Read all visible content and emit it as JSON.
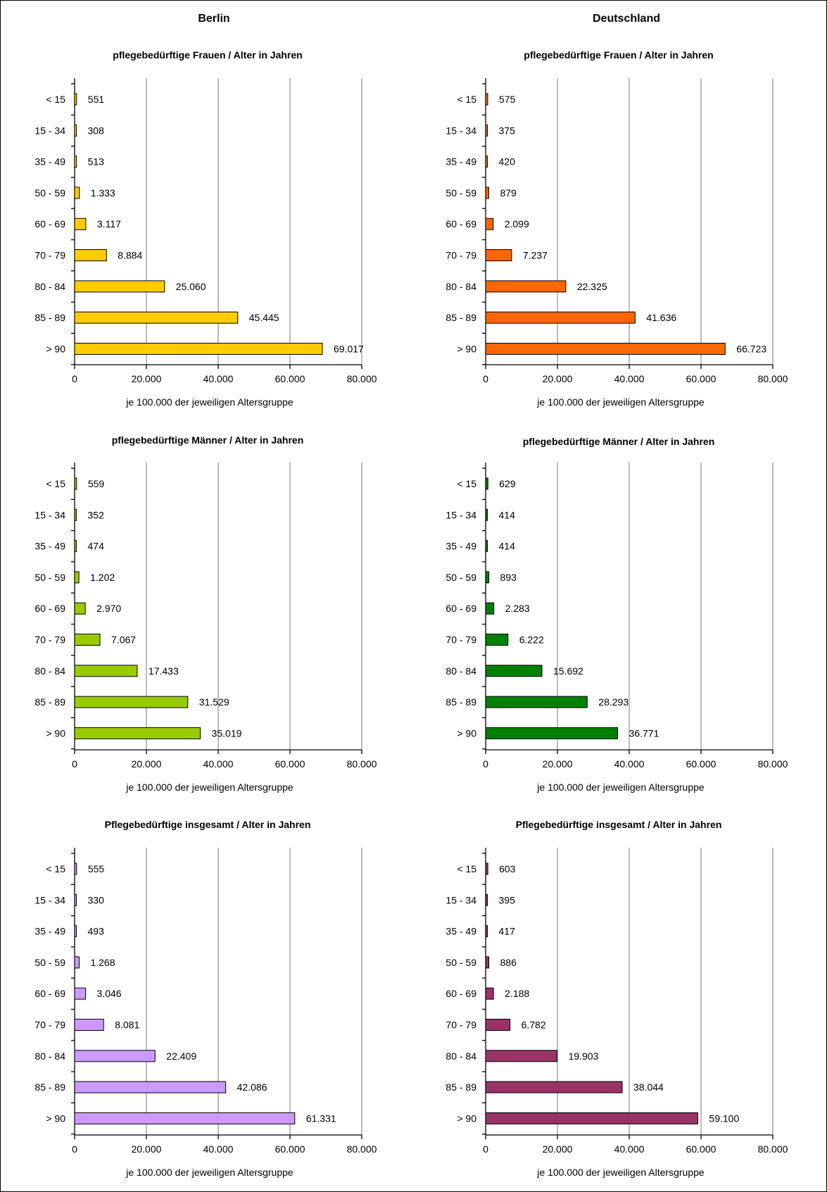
{
  "columns": [
    {
      "title": "Berlin"
    },
    {
      "title": "Deutschland"
    }
  ],
  "chart_data": [
    {
      "type": "bar",
      "orientation": "horizontal",
      "group": "Berlin",
      "title": "pflegebedürftige Frauen / Alter in Jahren",
      "xlabel": "je 100.000 der jeweiligen Altersgruppe",
      "ylabel": "",
      "categories": [
        "<  15",
        "15 - 34",
        "35 - 49",
        "50 - 59",
        "60 - 69",
        "70 - 79",
        "80 - 84",
        "85 - 89",
        "> 90"
      ],
      "values": [
        551,
        308,
        513,
        1333,
        3117,
        8884,
        25060,
        45445,
        69017
      ],
      "labels": [
        "551",
        "308",
        "513",
        "1.333",
        "3.117",
        "8.884",
        "25.060",
        "45.445",
        "69.017"
      ],
      "xticks": [
        "0",
        "20.000",
        "40.000",
        "60.000",
        "80.000"
      ],
      "xlim": [
        0,
        80000
      ],
      "grid": true,
      "color": "#FFCC00"
    },
    {
      "type": "bar",
      "orientation": "horizontal",
      "group": "Deutschland",
      "title": "pflegebedürftige Frauen / Alter in Jahren",
      "xlabel": "je 100.000 der jeweiligen Altersgruppe",
      "ylabel": "",
      "categories": [
        "<  15",
        "15 - 34",
        "35 - 49",
        "50 - 59",
        "60 - 69",
        "70 - 79",
        "80 - 84",
        "85 - 89",
        "> 90"
      ],
      "values": [
        575,
        375,
        420,
        879,
        2099,
        7237,
        22325,
        41636,
        66723
      ],
      "labels": [
        "575",
        "375",
        "420",
        "879",
        "2.099",
        "7.237",
        "22.325",
        "41.636",
        "66.723"
      ],
      "xticks": [
        "0",
        "20.000",
        "40.000",
        "60.000",
        "80.000"
      ],
      "xlim": [
        0,
        80000
      ],
      "grid": true,
      "color": "#FF6600"
    },
    {
      "type": "bar",
      "orientation": "horizontal",
      "group": "Berlin",
      "title": "pflegebedürftige Männer / Alter in Jahren",
      "xlabel": "je 100.000 der jeweiligen Altersgruppe",
      "ylabel": "",
      "categories": [
        "<  15",
        "15 - 34",
        "35 - 49",
        "50 - 59",
        "60 - 69",
        "70 - 79",
        "80 - 84",
        "85 - 89",
        "> 90"
      ],
      "values": [
        559,
        352,
        474,
        1202,
        2970,
        7067,
        17433,
        31529,
        35019
      ],
      "labels": [
        "559",
        "352",
        "474",
        "1.202",
        "2.970",
        "7.067",
        "17.433",
        "31.529",
        "35.019"
      ],
      "xticks": [
        "0",
        "20.000",
        "40.000",
        "60.000",
        "80.000"
      ],
      "xlim": [
        0,
        80000
      ],
      "grid": true,
      "color": "#99CC00"
    },
    {
      "type": "bar",
      "orientation": "horizontal",
      "group": "Deutschland",
      "title": "pflegebedürftige Männer / Alter in Jahren",
      "xlabel": "je 100.000 der jeweiligen Altersgruppe",
      "ylabel": "",
      "categories": [
        "<  15",
        "15 - 34",
        "35 - 49",
        "50 - 59",
        "60 - 69",
        "70 - 79",
        "80 - 84",
        "85 - 89",
        "> 90"
      ],
      "values": [
        629,
        414,
        414,
        893,
        2283,
        6222,
        15692,
        28293,
        36771
      ],
      "labels": [
        "629",
        "414",
        "414",
        "893",
        "2.283",
        "6.222",
        "15.692",
        "28.293",
        "36.771"
      ],
      "xticks": [
        "0",
        "20.000",
        "40.000",
        "60.000",
        "80.000"
      ],
      "xlim": [
        0,
        80000
      ],
      "grid": true,
      "color": "#008000"
    },
    {
      "type": "bar",
      "orientation": "horizontal",
      "group": "Berlin",
      "title": "Pflegebedürftige insgesamt / Alter in Jahren",
      "xlabel": "je 100.000 der jeweiligen Altersgruppe",
      "ylabel": "",
      "categories": [
        "<  15",
        "15 - 34",
        "35 - 49",
        "50 - 59",
        "60 - 69",
        "70 - 79",
        "80 - 84",
        "85 - 89",
        "> 90"
      ],
      "values": [
        555,
        330,
        493,
        1268,
        3046,
        8081,
        22409,
        42086,
        61331
      ],
      "labels": [
        "555",
        "330",
        "493",
        "1.268",
        "3.046",
        "8.081",
        "22.409",
        "42.086",
        "61.331"
      ],
      "xticks": [
        "0",
        "20.000",
        "40.000",
        "60.000",
        "80.000"
      ],
      "xlim": [
        0,
        80000
      ],
      "grid": true,
      "color": "#CC99FF"
    },
    {
      "type": "bar",
      "orientation": "horizontal",
      "group": "Deutschland",
      "title": "Pflegebedürftige insgesamt / Alter in Jahren",
      "xlabel": "je 100.000 der jeweiligen Altersgruppe",
      "ylabel": "",
      "categories": [
        "<  15",
        "15 - 34",
        "35 - 49",
        "50 - 59",
        "60 - 69",
        "70 - 79",
        "80 - 84",
        "85 - 89",
        "> 90"
      ],
      "values": [
        603,
        395,
        417,
        886,
        2188,
        6782,
        19903,
        38044,
        59100
      ],
      "labels": [
        "603",
        "395",
        "417",
        "886",
        "2.188",
        "6.782",
        "19.903",
        "38.044",
        "59.100"
      ],
      "xticks": [
        "0",
        "20.000",
        "40.000",
        "60.000",
        "80.000"
      ],
      "xlim": [
        0,
        80000
      ],
      "grid": true,
      "color": "#993366"
    }
  ]
}
